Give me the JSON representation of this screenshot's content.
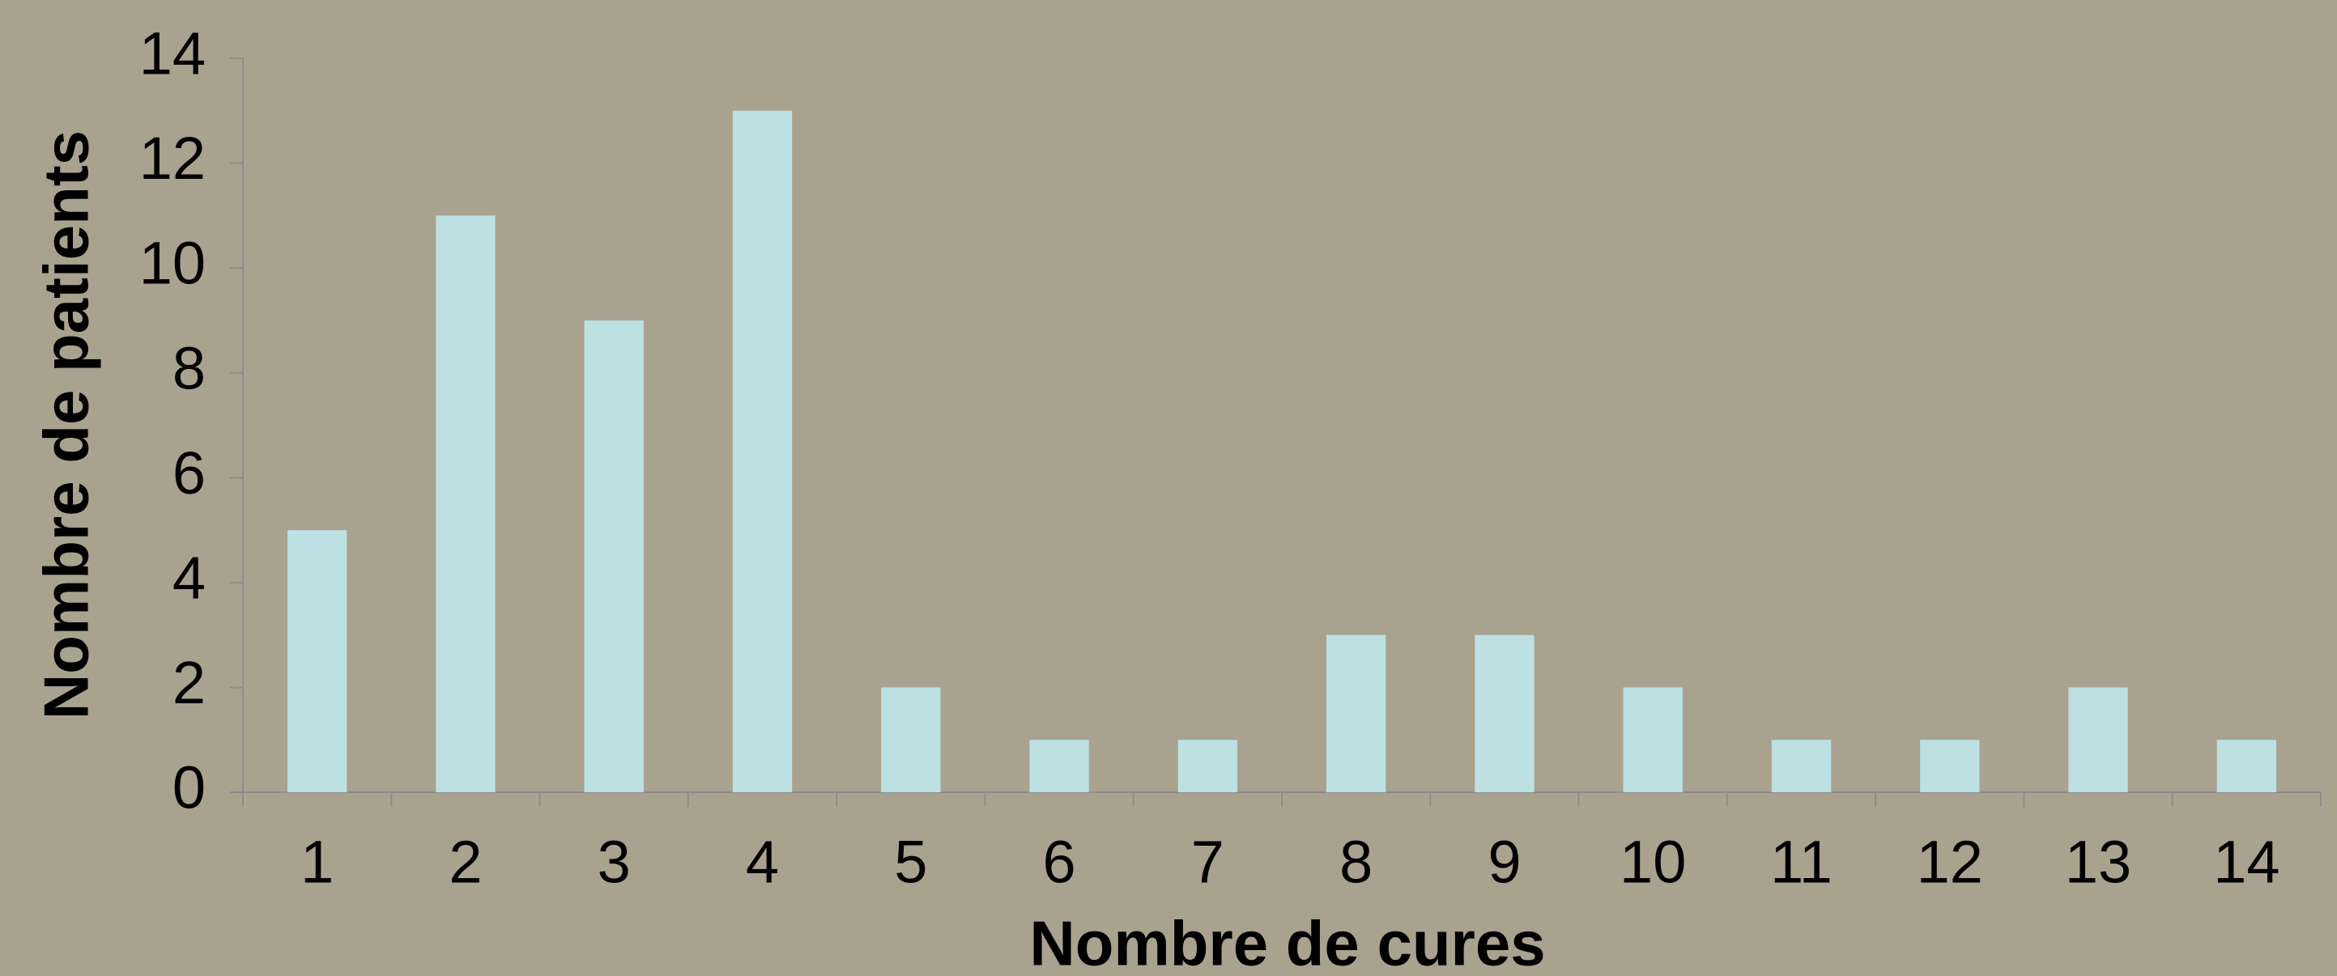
{
  "chart_data": {
    "type": "bar",
    "xlabel": "Nombre de cures",
    "ylabel": "Nombre de patients",
    "categories": [
      "1",
      "2",
      "3",
      "4",
      "5",
      "6",
      "7",
      "8",
      "9",
      "10",
      "11",
      "12",
      "13",
      "14"
    ],
    "values": [
      5,
      11,
      9,
      13,
      2,
      1,
      1,
      3,
      3,
      2,
      1,
      1,
      2,
      1
    ],
    "color": "#bde0e3",
    "ylim": [
      0,
      14
    ],
    "yticks": [
      0,
      2,
      4,
      6,
      8,
      10,
      12,
      14
    ],
    "grid": false
  }
}
